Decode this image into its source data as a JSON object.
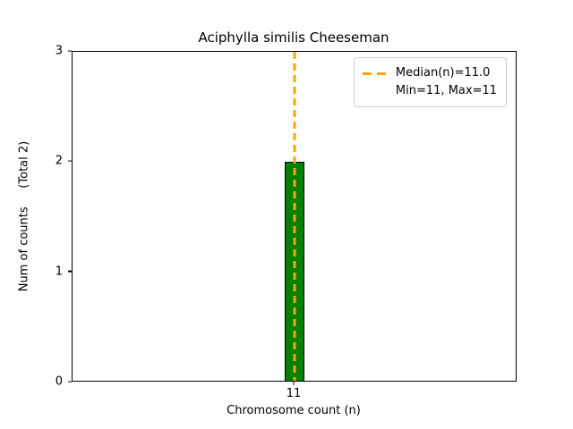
{
  "chart_data": {
    "type": "bar",
    "title": "Aciphylla similis Cheeseman",
    "xlabel": "Chromosome count (n)",
    "ylabel": "Num of counts     (Total 2)",
    "categories": [
      "11"
    ],
    "values": [
      2
    ],
    "total_counts": 2,
    "ylim": [
      0,
      3
    ],
    "yticks": [
      0,
      1,
      2,
      3
    ],
    "grid": false,
    "bar_color": "#008000",
    "bar_edge_color": "#000000",
    "median_line": {
      "x": 11,
      "style": "dashed",
      "color": "#FFA500"
    },
    "legend": {
      "position": "upper right",
      "entries": [
        {
          "label": "Median(n)=11.0",
          "marker": "orange-dashed-line"
        },
        {
          "label": "Min=11, Max=11",
          "marker": "none"
        }
      ]
    }
  }
}
